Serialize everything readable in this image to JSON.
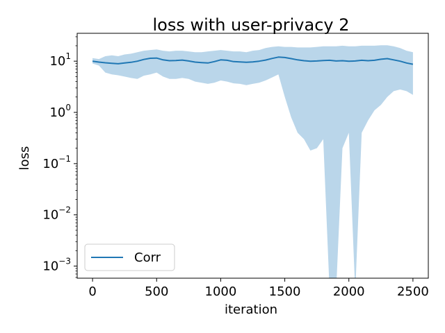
{
  "chart_data": {
    "type": "line",
    "title": "loss with user-privacy  2",
    "xlabel": "iteration",
    "ylabel": "loss",
    "xlim": [
      -120,
      2620
    ],
    "ylim": [
      0.00058,
      35
    ],
    "yscale": "log",
    "grid": false,
    "legend_position": "lower-left",
    "x_ticks": [
      {
        "value": 0,
        "label": "0"
      },
      {
        "value": 500,
        "label": "500"
      },
      {
        "value": 1000,
        "label": "1000"
      },
      {
        "value": 1500,
        "label": "1500"
      },
      {
        "value": 2000,
        "label": "2000"
      },
      {
        "value": 2500,
        "label": "2500"
      }
    ],
    "y_ticks": [
      {
        "value": 10,
        "base": "10",
        "exp": "1"
      },
      {
        "value": 1,
        "base": "10",
        "exp": "0"
      },
      {
        "value": 0.1,
        "base": "10",
        "exp": "−1"
      },
      {
        "value": 0.01,
        "base": "10",
        "exp": "−2"
      },
      {
        "value": 0.001,
        "base": "10",
        "exp": "−3"
      }
    ],
    "colors": {
      "line": "#1f77b4",
      "band": "#bad6ea"
    },
    "series": [
      {
        "name": "Corr",
        "x": [
          0,
          50,
          100,
          150,
          200,
          250,
          300,
          350,
          400,
          450,
          500,
          550,
          600,
          650,
          700,
          750,
          800,
          850,
          900,
          950,
          1000,
          1050,
          1100,
          1150,
          1200,
          1250,
          1300,
          1350,
          1400,
          1450,
          1500,
          1550,
          1600,
          1650,
          1700,
          1750,
          1800,
          1850,
          1900,
          1950,
          2000,
          2050,
          2100,
          2150,
          2200,
          2250,
          2300,
          2350,
          2400,
          2450,
          2500
        ],
        "y": [
          10.0,
          9.6,
          9.3,
          9.1,
          8.9,
          9.2,
          9.5,
          10.0,
          10.8,
          11.4,
          11.5,
          10.6,
          10.2,
          10.3,
          10.5,
          10.1,
          9.6,
          9.4,
          9.2,
          9.8,
          10.6,
          10.4,
          9.8,
          9.7,
          9.5,
          9.7,
          10.0,
          10.5,
          11.3,
          12.0,
          11.8,
          11.2,
          10.6,
          10.2,
          10.0,
          10.1,
          10.3,
          10.4,
          10.1,
          10.2,
          10.0,
          10.1,
          10.4,
          10.2,
          10.4,
          10.9,
          11.2,
          10.6,
          10.0,
          9.2,
          8.7
        ],
        "upper": [
          11.5,
          11.0,
          12.5,
          13.0,
          12.5,
          13.5,
          14.0,
          15.0,
          16.0,
          16.5,
          17.0,
          16.0,
          15.5,
          16.0,
          16.0,
          15.5,
          15.0,
          15.0,
          15.5,
          16.0,
          16.5,
          16.0,
          15.5,
          15.5,
          15.0,
          16.0,
          16.5,
          18.0,
          19.0,
          19.5,
          19.0,
          19.0,
          18.5,
          18.5,
          18.5,
          19.0,
          19.5,
          19.5,
          19.5,
          20.0,
          19.5,
          19.5,
          20.0,
          20.0,
          20.0,
          20.5,
          20.5,
          19.5,
          18.0,
          16.0,
          15.0
        ],
        "lower": [
          9.0,
          8.2,
          6.0,
          5.5,
          5.3,
          5.0,
          4.7,
          4.5,
          5.2,
          5.5,
          6.0,
          5.0,
          4.5,
          4.5,
          4.7,
          4.5,
          4.0,
          3.8,
          3.6,
          3.8,
          4.2,
          4.0,
          3.7,
          3.6,
          3.4,
          3.6,
          3.8,
          4.2,
          4.8,
          5.5,
          2.0,
          0.8,
          0.4,
          0.3,
          0.18,
          0.2,
          0.3,
          0.0003,
          0.0003,
          0.2,
          0.4,
          0.0003,
          0.4,
          0.7,
          1.1,
          1.4,
          2.0,
          2.6,
          2.8,
          2.6,
          2.2
        ]
      }
    ]
  }
}
